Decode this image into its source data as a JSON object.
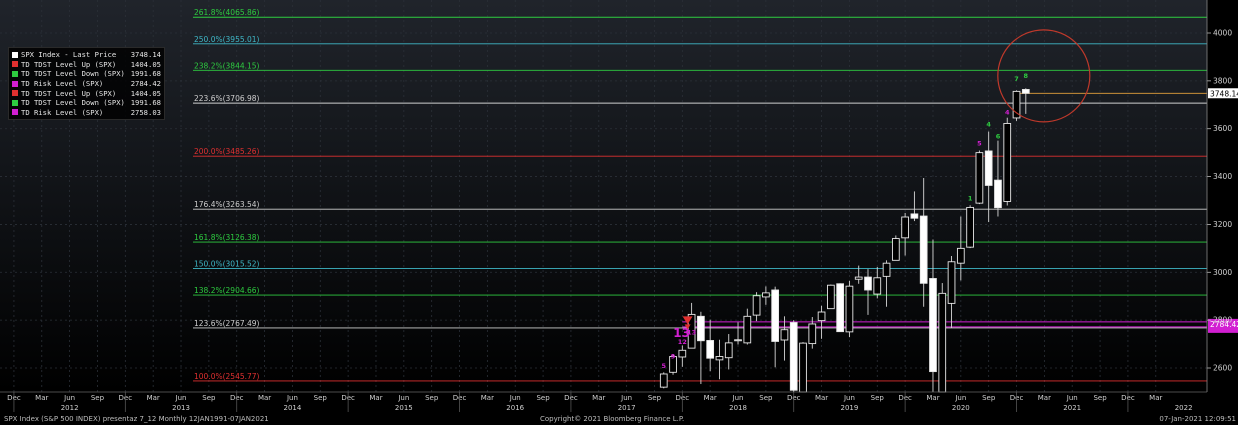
{
  "chart_data": {
    "type": "candlestick",
    "subtitle": "Monthly 12JAN1991-07JAN2021",
    "y_axis": {
      "range": [
        2500,
        4100
      ],
      "ticks": [
        2600,
        2800,
        3000,
        3200,
        3400,
        3600,
        3800,
        4000
      ],
      "grid": true
    },
    "x_axis": {
      "start": "2011-11",
      "end": "2022-05",
      "month_ticks": [
        "Dec",
        "Mar",
        "Jun",
        "Sep",
        "Dec",
        "Mar",
        "Jun",
        "Sep",
        "Dec",
        "Mar",
        "Jun",
        "Sep",
        "Dec",
        "Mar",
        "Jun",
        "Sep",
        "Dec",
        "Mar",
        "Jun",
        "Sep",
        "Dec",
        "Mar",
        "Jun",
        "Sep",
        "Dec",
        "Mar",
        "Jun",
        "Sep",
        "Dec",
        "Mar",
        "Jun",
        "Sep",
        "Dec",
        "Mar",
        "Jun",
        "Sep",
        "Dec",
        "Mar",
        "Jun",
        "Sep",
        "Dec",
        "Mar"
      ],
      "year_labels": [
        "2012",
        "2013",
        "2014",
        "2015",
        "2016",
        "2017",
        "2018",
        "2019",
        "2020",
        "2021",
        "2022"
      ],
      "grid": true
    },
    "fib_levels": [
      {
        "label": "261.8%(4065.86)",
        "value": 4065.86,
        "color": "#2ecc40"
      },
      {
        "label": "250.0%(3955.01)",
        "value": 3955.01,
        "color": "#3fb8c8"
      },
      {
        "label": "238.2%(3844.15)",
        "value": 3844.15,
        "color": "#2ecc40"
      },
      {
        "label": "223.6%(3706.98)",
        "value": 3706.98,
        "color": "#cfcfcf"
      },
      {
        "label": "200.0%(3485.26)",
        "value": 3485.26,
        "color": "#e03030"
      },
      {
        "label": "176.4%(3263.54)",
        "value": 3263.54,
        "color": "#cfcfcf"
      },
      {
        "label": "161.8%(3126.38)",
        "value": 3126.38,
        "color": "#2ecc40"
      },
      {
        "label": "150.0%(3015.52)",
        "value": 3015.52,
        "color": "#3fb8c8"
      },
      {
        "label": "138.2%(2904.66)",
        "value": 2904.66,
        "color": "#2ecc40"
      },
      {
        "label": "123.6%(2767.49)",
        "value": 2767.49,
        "color": "#cfcfcf"
      },
      {
        "label": "100.0%(2545.77)",
        "value": 2545.77,
        "color": "#e03030"
      }
    ],
    "last_price": {
      "value": 3748.14,
      "label": "3748.14",
      "color": "#e6a23c"
    },
    "risk_level": {
      "value": 2784.42,
      "label": "2784.42",
      "color": "#d21fd2"
    },
    "candles": [
      {
        "d": "2017-10",
        "o": 2520,
        "h": 2582,
        "l": 2515,
        "c": 2575
      },
      {
        "d": "2017-11",
        "o": 2582,
        "h": 2657,
        "l": 2572,
        "c": 2648
      },
      {
        "d": "2017-12",
        "o": 2646,
        "h": 2694,
        "l": 2605,
        "c": 2674
      },
      {
        "d": "2018-01",
        "o": 2683,
        "h": 2872,
        "l": 2683,
        "c": 2824
      },
      {
        "d": "2018-02",
        "o": 2816,
        "h": 2835,
        "l": 2533,
        "c": 2714
      },
      {
        "d": "2018-03",
        "o": 2715,
        "h": 2802,
        "l": 2587,
        "c": 2641
      },
      {
        "d": "2018-04",
        "o": 2634,
        "h": 2718,
        "l": 2553,
        "c": 2648
      },
      {
        "d": "2018-05",
        "o": 2643,
        "h": 2742,
        "l": 2594,
        "c": 2705
      },
      {
        "d": "2018-06",
        "o": 2718,
        "h": 2791,
        "l": 2698,
        "c": 2718
      },
      {
        "d": "2018-07",
        "o": 2705,
        "h": 2848,
        "l": 2698,
        "c": 2816
      },
      {
        "d": "2018-08",
        "o": 2821,
        "h": 2917,
        "l": 2796,
        "c": 2902
      },
      {
        "d": "2018-09",
        "o": 2897,
        "h": 2941,
        "l": 2864,
        "c": 2914
      },
      {
        "d": "2018-10",
        "o": 2926,
        "h": 2940,
        "l": 2603,
        "c": 2711
      },
      {
        "d": "2018-11",
        "o": 2717,
        "h": 2816,
        "l": 2631,
        "c": 2760
      },
      {
        "d": "2018-12",
        "o": 2790,
        "h": 2800,
        "l": 2347,
        "c": 2507
      },
      {
        "d": "2019-01",
        "o": 2476,
        "h": 2708,
        "l": 2444,
        "c": 2704
      },
      {
        "d": "2019-02",
        "o": 2702,
        "h": 2813,
        "l": 2681,
        "c": 2784
      },
      {
        "d": "2019-03",
        "o": 2798,
        "h": 2860,
        "l": 2722,
        "c": 2834
      },
      {
        "d": "2019-04",
        "o": 2848,
        "h": 2949,
        "l": 2848,
        "c": 2946
      },
      {
        "d": "2019-05",
        "o": 2952,
        "h": 2954,
        "l": 2751,
        "c": 2752
      },
      {
        "d": "2019-06",
        "o": 2751,
        "h": 2964,
        "l": 2729,
        "c": 2942
      },
      {
        "d": "2019-07",
        "o": 2971,
        "h": 3028,
        "l": 2952,
        "c": 2980
      },
      {
        "d": "2019-08",
        "o": 2980,
        "h": 3013,
        "l": 2822,
        "c": 2926
      },
      {
        "d": "2019-09",
        "o": 2909,
        "h": 3022,
        "l": 2891,
        "c": 2977
      },
      {
        "d": "2019-10",
        "o": 2983,
        "h": 3050,
        "l": 2856,
        "c": 3038
      },
      {
        "d": "2019-11",
        "o": 3050,
        "h": 3154,
        "l": 3050,
        "c": 3141
      },
      {
        "d": "2019-12",
        "o": 3144,
        "h": 3248,
        "l": 3070,
        "c": 3231
      },
      {
        "d": "2020-01",
        "o": 3244,
        "h": 3338,
        "l": 3214,
        "c": 3226
      },
      {
        "d": "2020-02",
        "o": 3235,
        "h": 3394,
        "l": 2856,
        "c": 2954
      },
      {
        "d": "2020-03",
        "o": 2974,
        "h": 3137,
        "l": 2192,
        "c": 2585
      },
      {
        "d": "2020-04",
        "o": 2499,
        "h": 2955,
        "l": 2447,
        "c": 2912
      },
      {
        "d": "2020-05",
        "o": 2870,
        "h": 3068,
        "l": 2767,
        "c": 3044
      },
      {
        "d": "2020-06",
        "o": 3038,
        "h": 3233,
        "l": 2966,
        "c": 3100
      },
      {
        "d": "2020-07",
        "o": 3105,
        "h": 3280,
        "l": 3101,
        "c": 3271
      },
      {
        "d": "2020-08",
        "o": 3289,
        "h": 3509,
        "l": 3285,
        "c": 3500
      },
      {
        "d": "2020-09",
        "o": 3507,
        "h": 3588,
        "l": 3210,
        "c": 3363
      },
      {
        "d": "2020-10",
        "o": 3385,
        "h": 3550,
        "l": 3233,
        "c": 3270
      },
      {
        "d": "2020-11",
        "o": 3296,
        "h": 3646,
        "l": 3279,
        "c": 3622
      },
      {
        "d": "2020-12",
        "o": 3645,
        "h": 3760,
        "l": 3633,
        "c": 3756
      },
      {
        "d": "2021-01",
        "o": 3764,
        "h": 3769,
        "l": 3662,
        "c": 3748
      }
    ],
    "td_markers": [
      {
        "d": "2017-10",
        "v": 2600,
        "text": "5",
        "color": "#d21fd2"
      },
      {
        "d": "2017-11",
        "v": 2640,
        "text": "9",
        "color": "#d21fd2"
      },
      {
        "d": "2017-12",
        "v": 2700,
        "text": "12",
        "color": "#d21fd2"
      },
      {
        "d": "2018-01",
        "v": 2740,
        "text": "13",
        "color": "#d21fd2"
      },
      {
        "d": "2020-07",
        "v": 3300,
        "text": "1",
        "color": "#2ecc40"
      },
      {
        "d": "2020-08",
        "v": 3530,
        "text": "5",
        "color": "#d21fd2"
      },
      {
        "d": "2020-09",
        "v": 3610,
        "text": "4",
        "color": "#2ecc40"
      },
      {
        "d": "2020-10",
        "v": 3560,
        "text": "6",
        "color": "#2ecc40"
      },
      {
        "d": "2020-11",
        "v": 3660,
        "text": "4",
        "color": "#d21fd2"
      },
      {
        "d": "2020-12",
        "v": 3800,
        "text": "7",
        "color": "#2ecc40"
      },
      {
        "d": "2021-01",
        "v": 3812,
        "text": "8",
        "color": "#2ecc40"
      }
    ],
    "td_big_label": {
      "d": "2018-01",
      "v": 2730,
      "text": "13",
      "color": "#d21fd2"
    },
    "signal_arrow": {
      "d": "2018-01",
      "v": 2795,
      "color": "#e03030"
    },
    "highlight_circle": {
      "d": "2021-01",
      "v": 3800,
      "color": "#c0392b"
    },
    "legend": [
      {
        "label": "SPX Index - Last Price",
        "value": "3748.14",
        "color": "#ffffff"
      },
      {
        "label": "TD TDST Level Up (SPX)",
        "value": "1404.05",
        "color": "#e03030"
      },
      {
        "label": "TD TDST Level Down (SPX)",
        "value": "1991.68",
        "color": "#2ecc40"
      },
      {
        "label": "TD Risk Level (SPX)",
        "value": "2784.42",
        "color": "#d21fd2"
      },
      {
        "label": "TD TDST Level Up (SPX)",
        "value": "1404.05",
        "color": "#e03030"
      },
      {
        "label": "TD TDST Level Down (SPX)",
        "value": "1991.68",
        "color": "#2ecc40"
      },
      {
        "label": "TD Risk Level (SPX)",
        "value": "2758.03",
        "color": "#d21fd2"
      }
    ]
  },
  "footer": {
    "left": "SPX Index (S&P 500 INDEX) presentaz  7_12  Monthly 12JAN1991-07JAN2021",
    "center": "Copyright© 2021 Bloomberg Finance L.P.",
    "right": "07-Jan-2021 12:09:51"
  },
  "colors": {
    "background_top": "#1a1e24",
    "background_bottom": "#000000",
    "grid": "#2b3038",
    "axis_text": "#d0d0d0"
  }
}
